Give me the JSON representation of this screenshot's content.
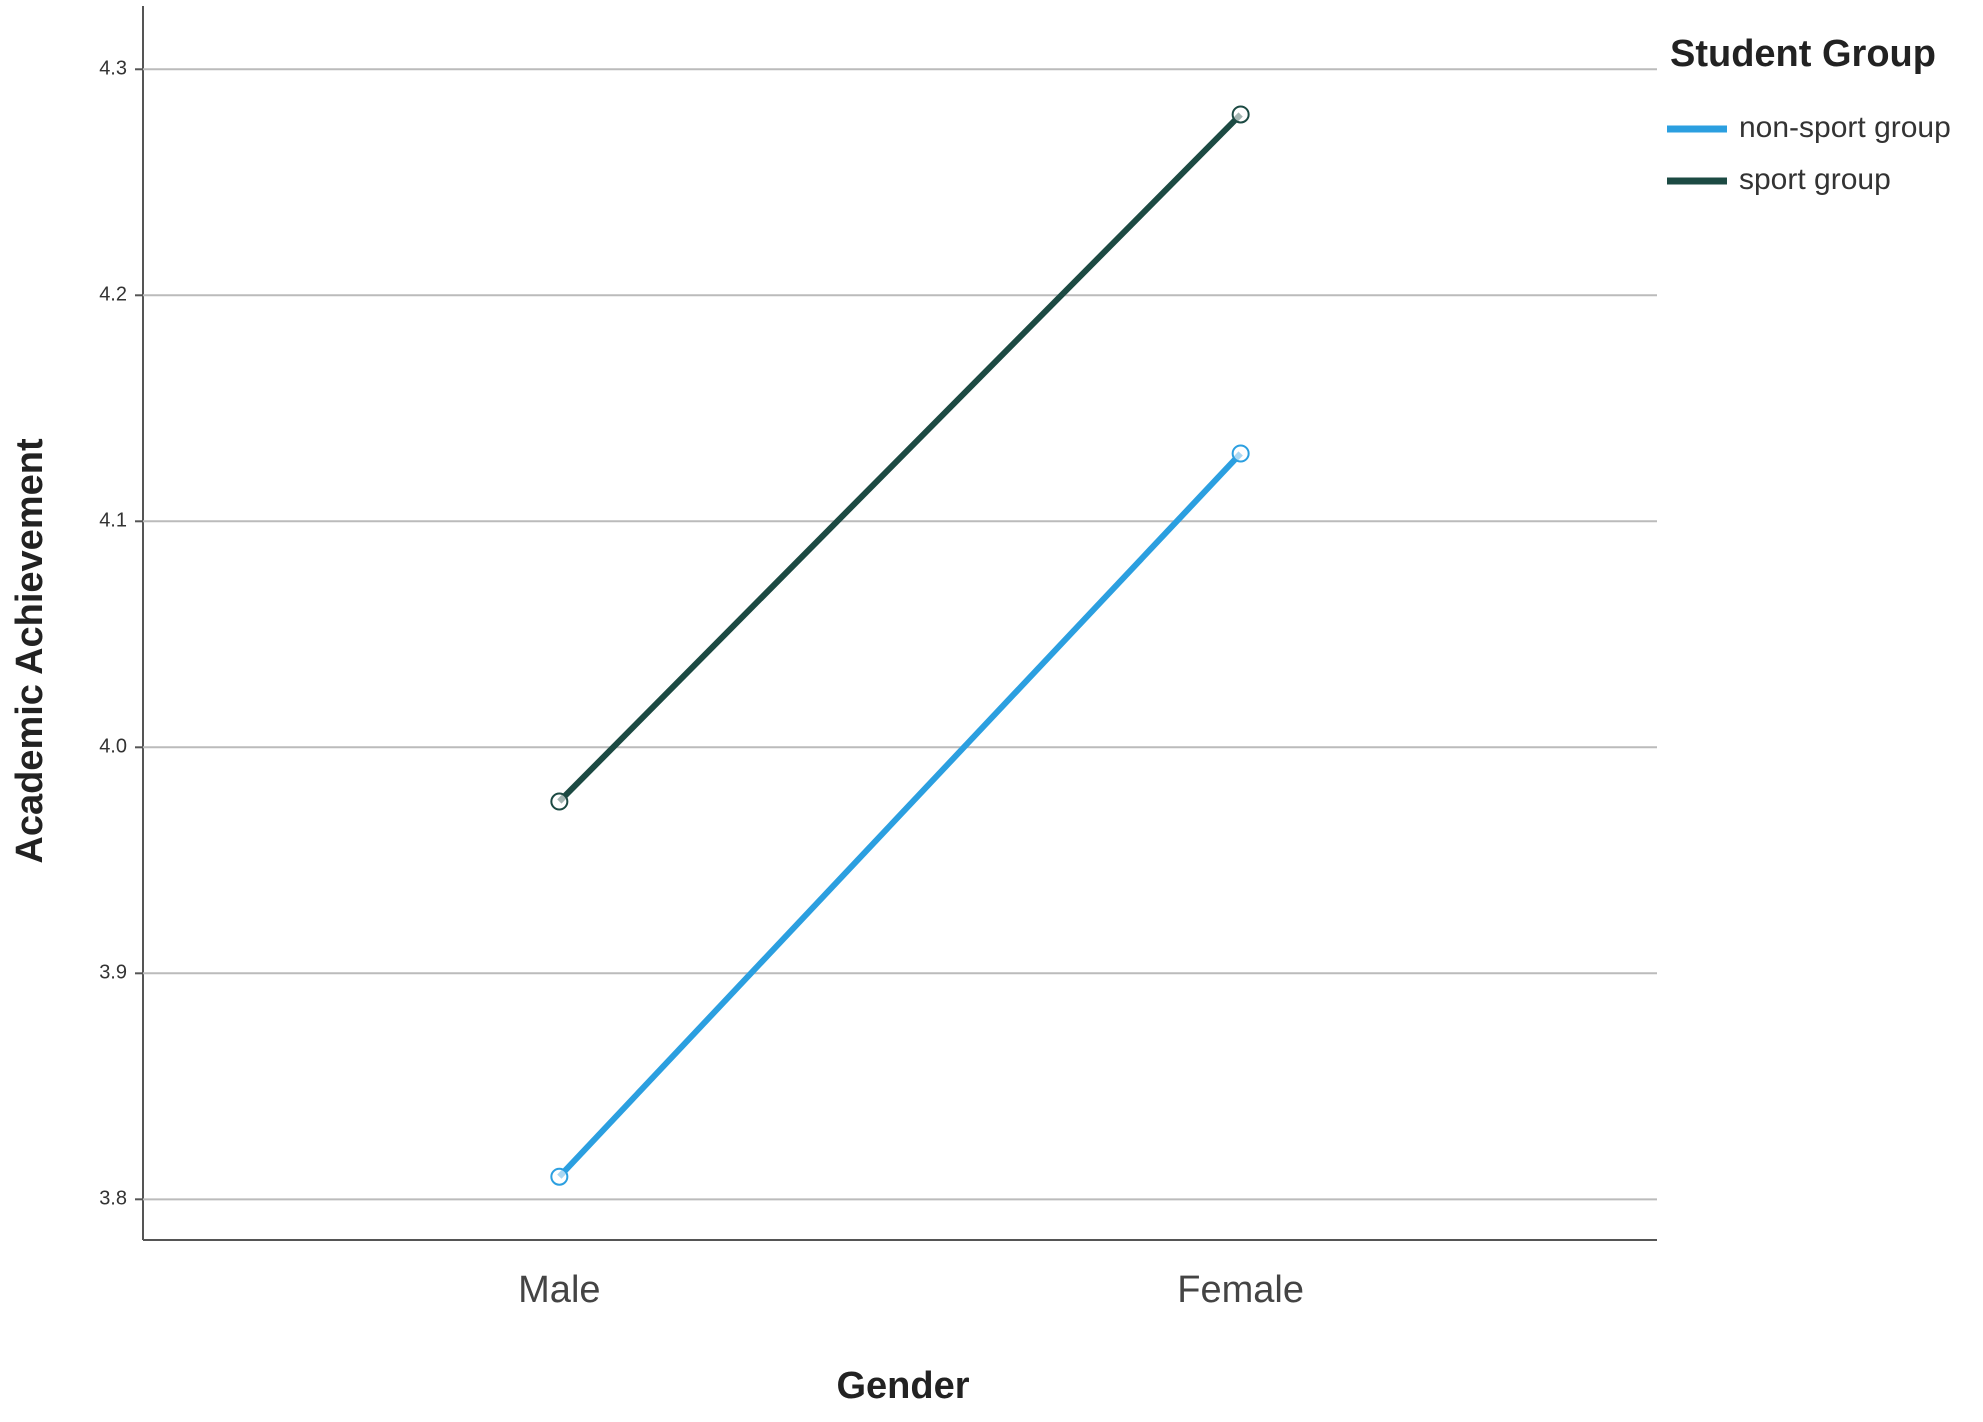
{
  "chart_data": {
    "type": "line",
    "x_label": "Gender",
    "y_label": "Academic Achievement",
    "legend_title": "Student Group",
    "legend": "top-right-outside",
    "categories": [
      "Male",
      "Female"
    ],
    "series": [
      {
        "name": "non-sport group",
        "color": "#2b9fe0",
        "values": [
          3.81,
          4.13
        ]
      },
      {
        "name": "sport group",
        "color": "#1c4a43",
        "values": [
          3.976,
          4.28
        ]
      }
    ],
    "ylim": [
      3.782,
      4.328
    ],
    "yticks": [
      3.8,
      3.9,
      {
        "value": 4,
        "label": "4.0"
      },
      4.1,
      4.2,
      4.3
    ],
    "grid": true
  }
}
